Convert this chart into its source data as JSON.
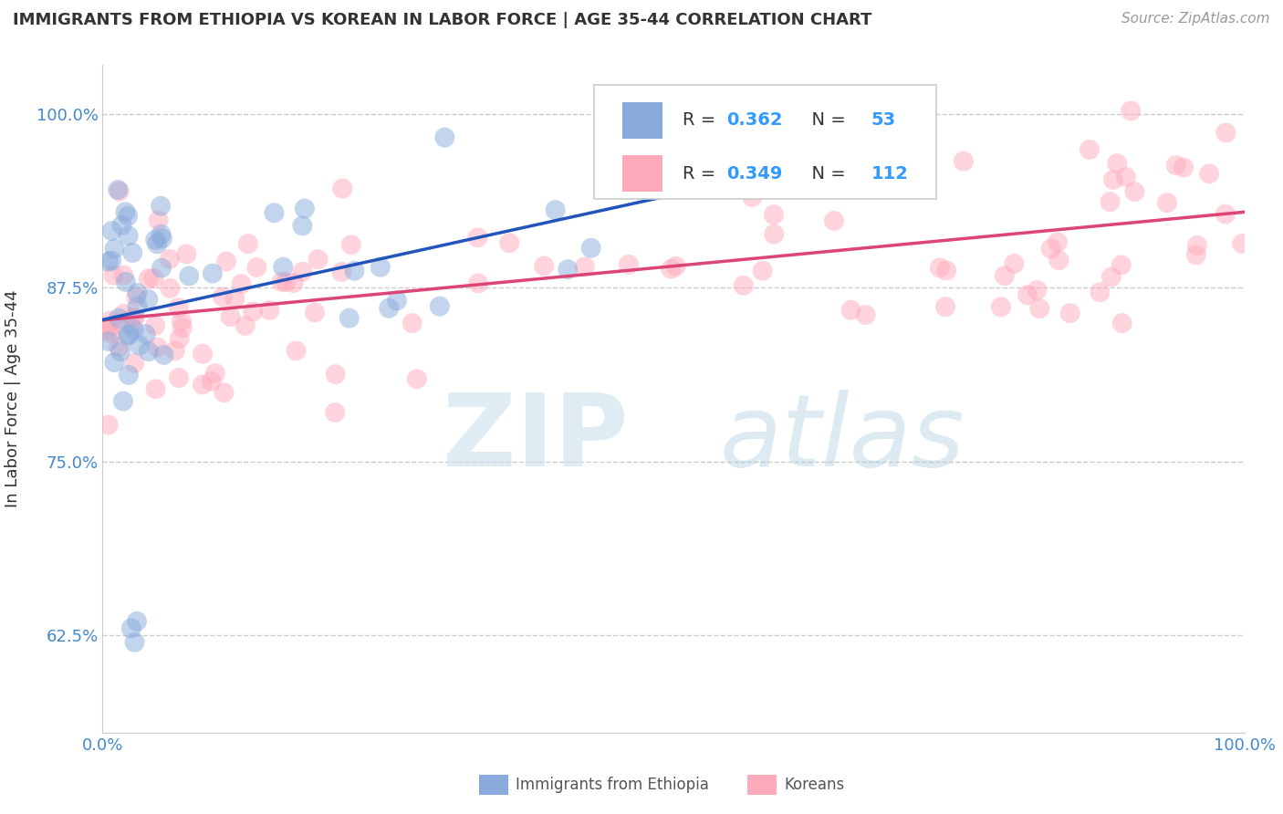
{
  "title": "IMMIGRANTS FROM ETHIOPIA VS KOREAN IN LABOR FORCE | AGE 35-44 CORRELATION CHART",
  "source": "Source: ZipAtlas.com",
  "ylabel": "In Labor Force | Age 35-44",
  "xlim": [
    0.0,
    1.0
  ],
  "ylim": [
    0.555,
    1.035
  ],
  "yticks": [
    0.625,
    0.75,
    0.875,
    1.0
  ],
  "ytick_labels": [
    "62.5%",
    "75.0%",
    "87.5%",
    "100.0%"
  ],
  "color_ethiopia": "#88AADD",
  "color_korean": "#FFAABB",
  "color_line_ethiopia": "#2255BB",
  "color_line_korean": "#DD4477",
  "legend_eth_r": "0.362",
  "legend_eth_n": "53",
  "legend_kor_r": "0.349",
  "legend_kor_n": "112",
  "label_ethiopia": "Immigrants from Ethiopia",
  "label_korean": "Koreans",
  "accent_color": "#3399FF",
  "text_color": "#333333",
  "tick_color": "#4488CC",
  "grid_color": "#cccccc",
  "source_color": "#999999"
}
